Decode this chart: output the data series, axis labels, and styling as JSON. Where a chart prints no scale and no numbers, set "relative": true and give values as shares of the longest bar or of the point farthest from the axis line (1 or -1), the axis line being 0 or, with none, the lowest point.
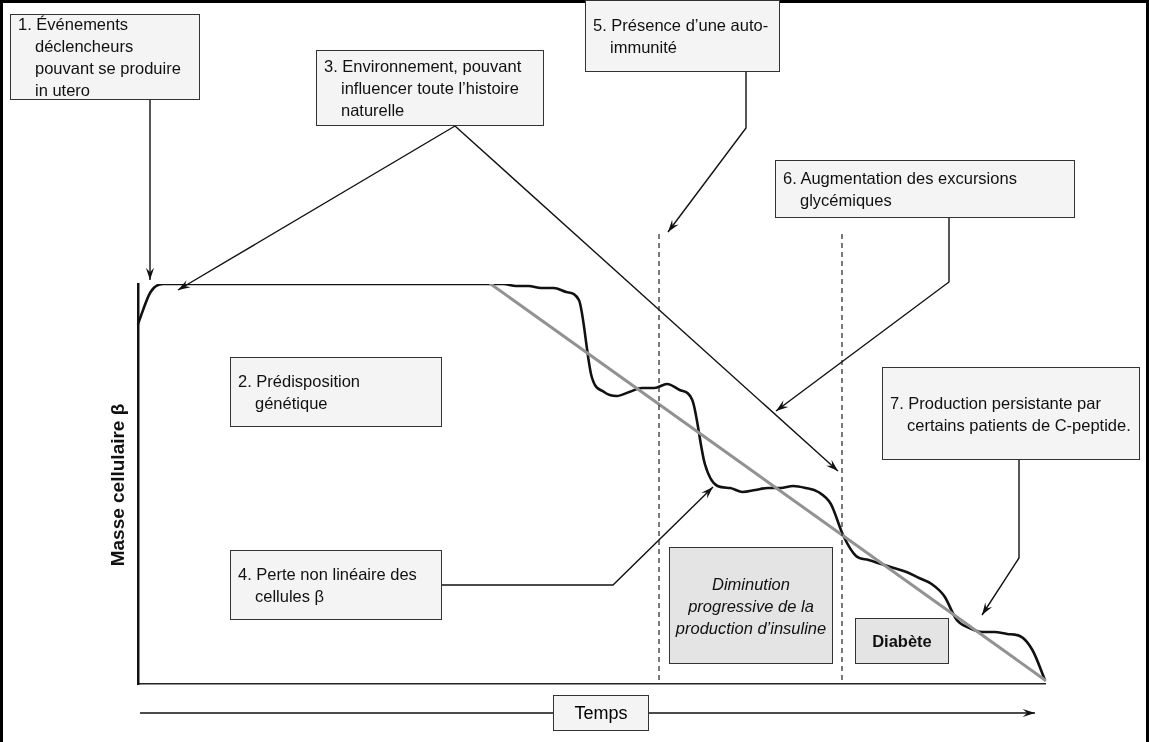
{
  "chart_data": {
    "type": "line",
    "relative": true,
    "marker": "none",
    "xlabel": "Temps",
    "ylabel": "Masse cellulaire β",
    "categories": [
      null,
      null,
      null,
      null,
      null,
      null,
      null,
      null,
      null,
      null,
      null,
      null,
      null,
      null,
      null,
      null,
      null,
      null,
      null,
      null,
      null,
      null,
      null,
      null,
      null,
      null,
      null,
      null,
      null,
      null,
      null,
      null,
      null,
      null,
      null,
      null,
      null,
      null,
      null,
      null,
      null,
      null,
      null,
      null,
      null,
      null,
      null,
      null,
      null,
      null,
      null,
      null,
      null,
      null,
      null,
      null,
      null,
      null,
      null,
      null,
      null,
      null,
      null,
      null,
      null,
      null,
      null,
      null,
      null,
      null,
      null,
      null,
      null
    ],
    "series": [
      {
        "color": "#111111",
        "line_style": "solid",
        "values": [
          0.9,
          0.98,
          1,
          1,
          1,
          1,
          1,
          1,
          1,
          1,
          1,
          1,
          1,
          1,
          1,
          1,
          1,
          1,
          1,
          1,
          1,
          1,
          1,
          1,
          1,
          1,
          1,
          1,
          1,
          1,
          0.995,
          0.995,
          0.99,
          0.99,
          0.98,
          0.96,
          0.77,
          0.73,
          0.72,
          0.73,
          0.74,
          0.74,
          0.75,
          0.735,
          0.71,
          0.55,
          0.495,
          0.49,
          0.48,
          0.485,
          0.49,
          0.49,
          0.495,
          0.49,
          0.48,
          0.45,
          0.37,
          0.32,
          0.31,
          0.3,
          0.29,
          0.28,
          0.265,
          0.25,
          0.22,
          0.16,
          0.14,
          0.13,
          0.13,
          0.125,
          0.12,
          0.085,
          0.01
        ]
      },
      {
        "color": "#929292",
        "line_style": "solid",
        "values": [
          null,
          null,
          null,
          null,
          null,
          null,
          null,
          null,
          null,
          null,
          null,
          null,
          null,
          null,
          null,
          null,
          null,
          null,
          null,
          null,
          null,
          null,
          null,
          null,
          null,
          null,
          null,
          null,
          1,
          null,
          null,
          null,
          null,
          null,
          null,
          null,
          null,
          null,
          null,
          null,
          null,
          null,
          null,
          null,
          null,
          null,
          null,
          null,
          null,
          null,
          null,
          null,
          null,
          null,
          null,
          null,
          null,
          null,
          null,
          null,
          null,
          null,
          null,
          null,
          null,
          null,
          null,
          null,
          null,
          null,
          null,
          null,
          0.01
        ]
      }
    ],
    "annotations": [
      "1. Événements déclencheurs pouvant se produire in utero",
      "2. Prédisposition génétique",
      "3. Environnement, pouvant influencer toute l’histoire naturelle",
      "4. Perte non linéaire des cellules β",
      "5. Présence d’une auto-immunité",
      "6. Augmentation des excursions glycémiques",
      "7. Production persistante par certains patients de C-peptide.",
      "Diminution progressive de la production d’insuline",
      "Diabète"
    ]
  }
}
